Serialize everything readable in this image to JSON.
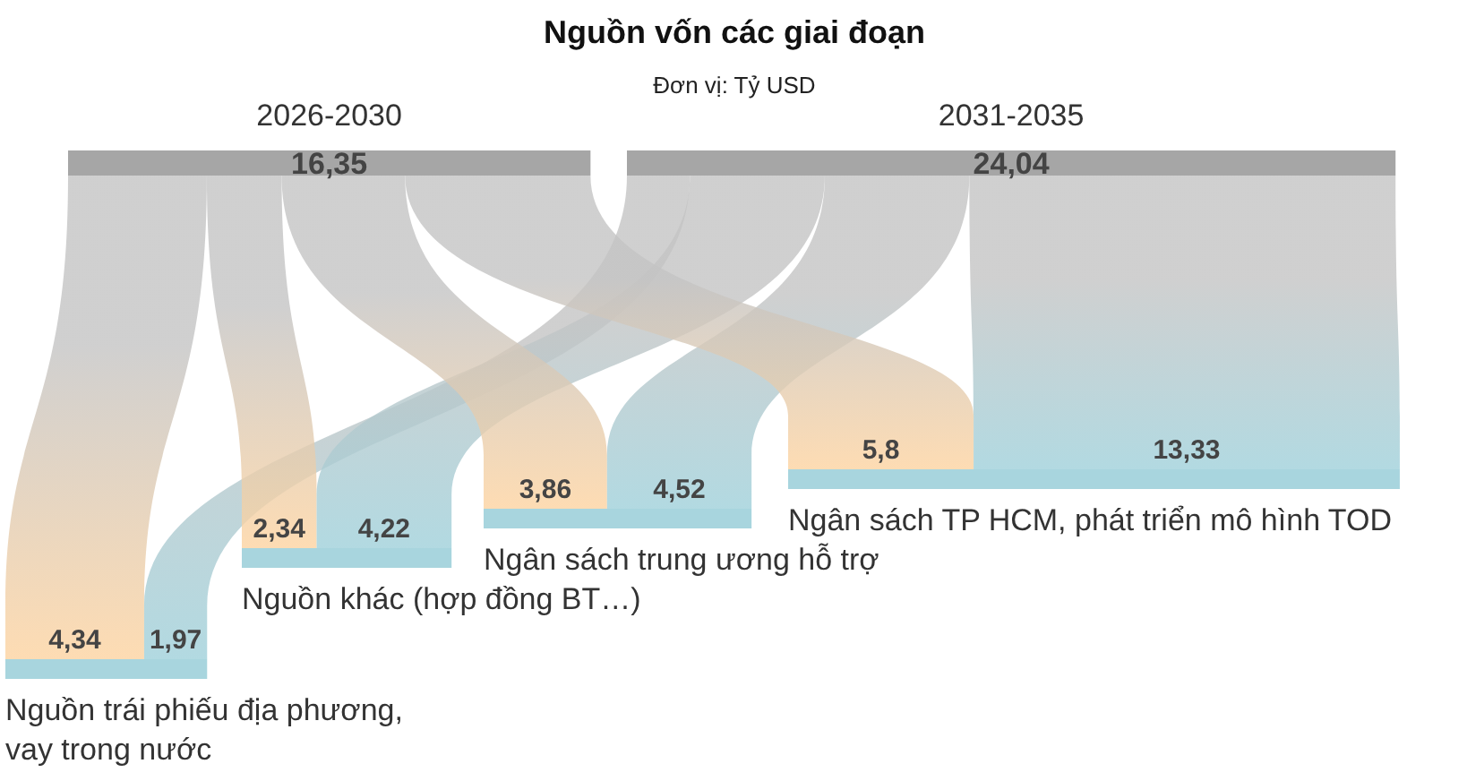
{
  "chart_data": {
    "type": "other",
    "title": "Nguồn vốn các giai đoạn",
    "subtitle": "Đơn vị: Tỷ USD",
    "categories": [
      "Nguồn trái phiếu địa phương, vay trong nước",
      "Nguồn khác (hợp đồng BT…)",
      "Ngân sách trung ương hỗ trợ",
      "Ngân sách TP HCM, phát triển mô hình TOD"
    ],
    "series": [
      {
        "name": "2026-2030",
        "color": "#fdd3a0",
        "values": [
          4.34,
          2.34,
          3.86,
          5.8
        ],
        "value_labels": [
          "4,34",
          "2,34",
          "3,86",
          "5,8"
        ]
      },
      {
        "name": "2031-2035",
        "color": "#9fd0da",
        "values": [
          1.97,
          4.22,
          4.52,
          13.33
        ],
        "value_labels": [
          "1,97",
          "4,22",
          "4,52",
          "13,33"
        ]
      }
    ],
    "totals": [
      "16,35",
      "24,04"
    ]
  }
}
